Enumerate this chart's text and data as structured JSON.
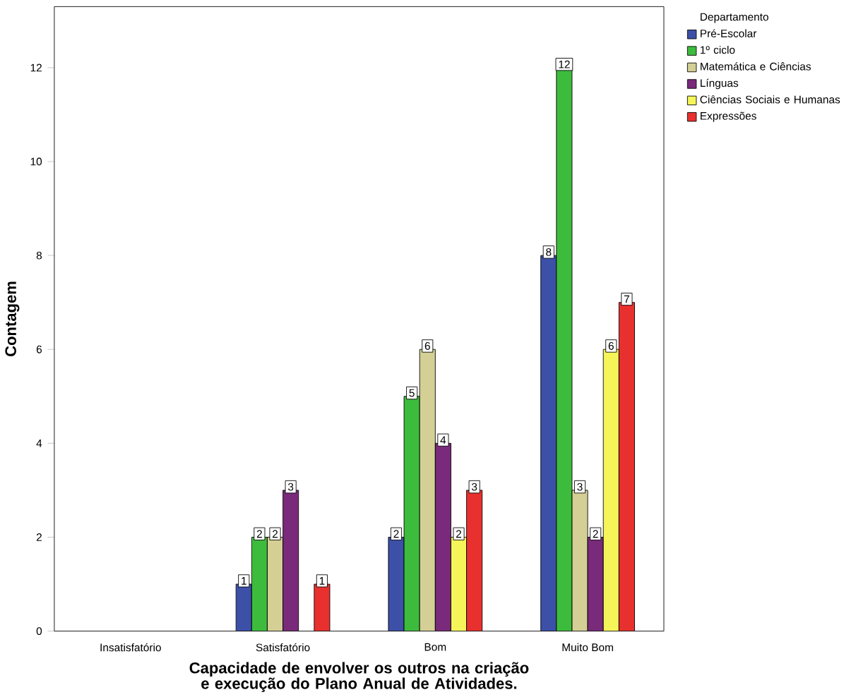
{
  "chart_data": {
    "type": "bar",
    "xlabel": "Capacidade de envolver os outros na criação e execução do Plano Anual de Atividades.",
    "ylabel": "Contagem",
    "legend_title": "Departamento",
    "categories": [
      "Insatisfatório",
      "Satisfatório",
      "Bom",
      "Muito Bom"
    ],
    "series": [
      {
        "name": "Pré-Escolar",
        "color": "#3c50a8",
        "values": [
          null,
          1,
          2,
          8
        ]
      },
      {
        "name": "1º ciclo",
        "color": "#3dbb3d",
        "values": [
          null,
          2,
          5,
          12
        ]
      },
      {
        "name": "Matemática e Ciências",
        "color": "#d4cf94",
        "values": [
          null,
          2,
          6,
          3
        ]
      },
      {
        "name": "Línguas",
        "color": "#7a2a7a",
        "values": [
          null,
          3,
          4,
          2
        ]
      },
      {
        "name": "Ciências Sociais e Humanas",
        "color": "#f5f55a",
        "values": [
          null,
          null,
          2,
          6
        ]
      },
      {
        "name": "Expressões",
        "color": "#e8312e",
        "values": [
          null,
          1,
          3,
          7
        ]
      }
    ],
    "ylim": [
      0,
      13.3
    ],
    "yticks": [
      0,
      2,
      4,
      6,
      8,
      10,
      12
    ],
    "data_labels": true,
    "legend": "right"
  }
}
